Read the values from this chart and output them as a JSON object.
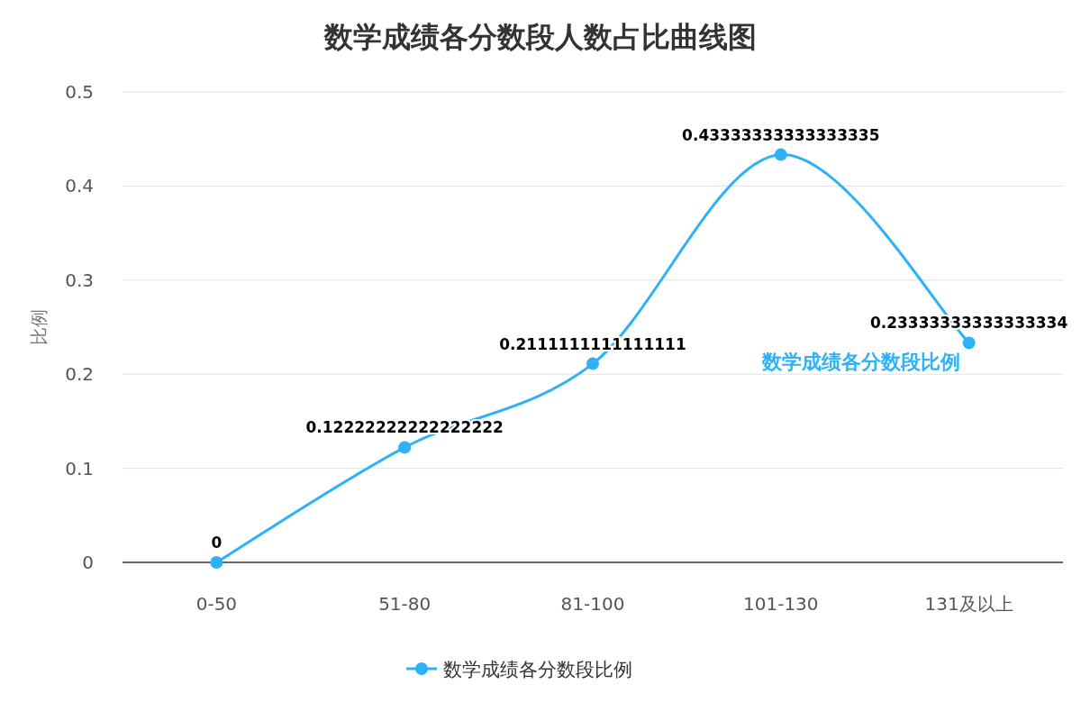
{
  "chart_data": {
    "type": "line",
    "title": "数学成绩各分数段人数占比曲线图",
    "ylabel": "比例",
    "categories": [
      "0-50",
      "51-80",
      "81-100",
      "101-130",
      "131及以上"
    ],
    "series": [
      {
        "name": "数学成绩各分数段比例",
        "color": "#2eb1f7",
        "values": [
          0,
          0.12222222222222222,
          0.2111111111111111,
          0.43333333333333335,
          0.23333333333333334
        ]
      }
    ],
    "ylim": [
      0,
      0.5
    ],
    "yticks": [
      0,
      0.1,
      0.2,
      0.3,
      0.4,
      0.5
    ],
    "grid": "y",
    "legend": "bottom",
    "marker": "circle",
    "data_labels": true
  }
}
